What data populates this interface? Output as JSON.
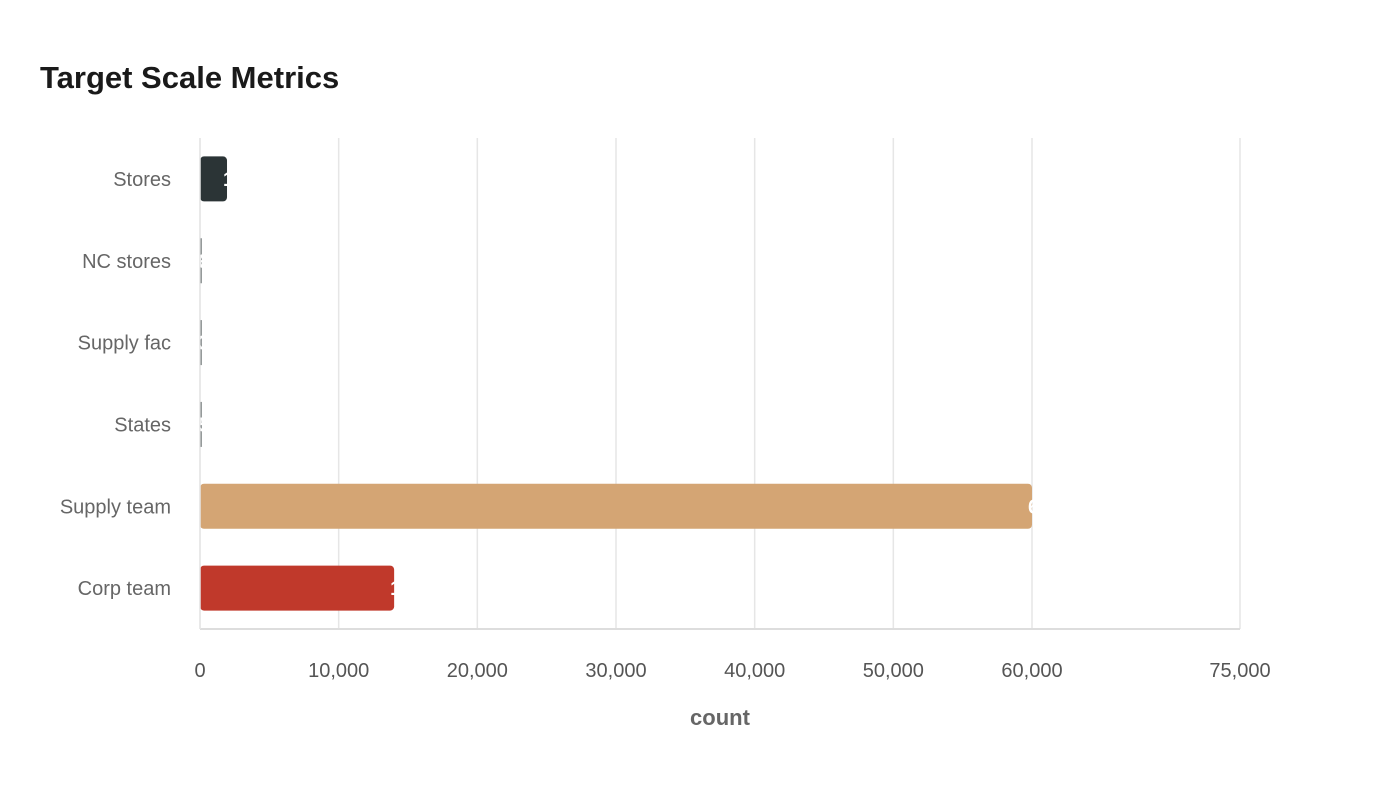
{
  "chart_data": {
    "type": "bar",
    "orientation": "horizontal",
    "title": "Target Scale Metrics",
    "xlabel": "count",
    "ylabel": "",
    "categories": [
      "Stores",
      "NC stores",
      "Supply fac",
      "States",
      "Supply team",
      "Corp team"
    ],
    "values": [
      1948,
      63,
      38,
      50,
      60000,
      14000
    ],
    "colors": [
      "#2b3436",
      "#2b3436",
      "#2b3436",
      "#2b3436",
      "#d4a574",
      "#c0392b"
    ],
    "xlim": [
      0,
      75000
    ],
    "xticks": [
      0,
      10000,
      20000,
      30000,
      40000,
      50000,
      60000,
      75000
    ],
    "xtick_labels": [
      "0",
      "10,000",
      "20,000",
      "30,000",
      "40,000",
      "50,000",
      "60,000",
      "75,000"
    ],
    "value_labels": [
      "1,948",
      "63",
      "38",
      "50",
      "60,000",
      "14,000"
    ],
    "grid": "vertical"
  }
}
